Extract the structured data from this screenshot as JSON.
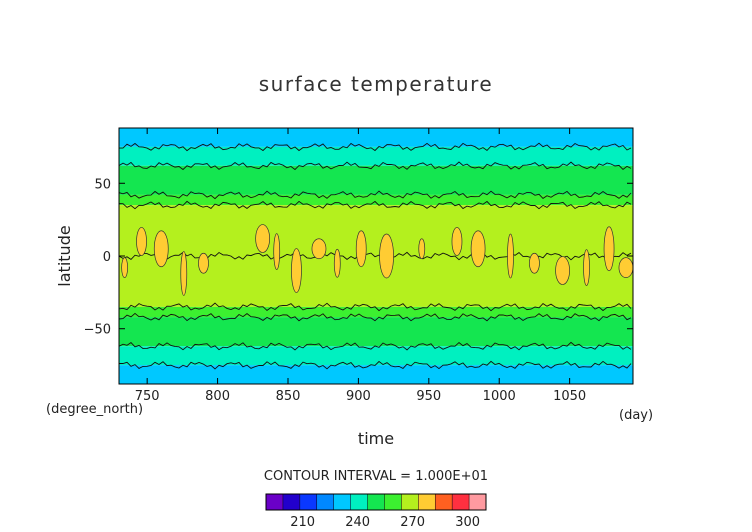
{
  "chart_data": {
    "type": "heatmap",
    "title": "surface temperature",
    "xlabel": "time",
    "ylabel": "latitude",
    "x_units": "(day)",
    "y_units": "(degree_north)",
    "xlim": [
      730,
      1095
    ],
    "ylim": [
      -88,
      88
    ],
    "x_ticks": [
      750,
      800,
      850,
      900,
      950,
      1000,
      1050
    ],
    "y_ticks": [
      -50,
      0,
      50
    ],
    "contour_interval_label": "CONTOUR INTERVAL = 1.000E+01",
    "colorbar": {
      "levels": [
        190,
        200,
        210,
        220,
        230,
        240,
        250,
        260,
        270,
        280,
        290,
        300,
        310
      ],
      "tick_values": [
        210,
        240,
        270,
        300
      ],
      "colors": [
        "#6a00c8",
        "#2200cc",
        "#0a38ff",
        "#0088ff",
        "#00c8ff",
        "#00f0c0",
        "#14e650",
        "#3cf030",
        "#b4f01e",
        "#ffcc33",
        "#ff6020",
        "#ff3040",
        "#ff9aa0"
      ]
    },
    "zonal_profile": [
      {
        "lat": 90,
        "value": 230
      },
      {
        "lat": 75,
        "value": 240
      },
      {
        "lat": 62,
        "value": 250
      },
      {
        "lat": 42,
        "value": 260
      },
      {
        "lat": 35,
        "value": 270
      },
      {
        "lat": 0,
        "value": 279
      },
      {
        "lat": -35,
        "value": 270
      },
      {
        "lat": -42,
        "value": 260
      },
      {
        "lat": -62,
        "value": 250
      },
      {
        "lat": -75,
        "value": 240
      },
      {
        "lat": -90,
        "value": 230
      }
    ],
    "warm_patches_above_280": [
      {
        "day": 734,
        "lat": -8
      },
      {
        "day": 746,
        "lat": 10
      },
      {
        "day": 760,
        "lat": 5
      },
      {
        "day": 776,
        "lat": -12
      },
      {
        "day": 790,
        "lat": -5
      },
      {
        "day": 832,
        "lat": 12
      },
      {
        "day": 842,
        "lat": 3
      },
      {
        "day": 856,
        "lat": -10
      },
      {
        "day": 872,
        "lat": 5
      },
      {
        "day": 885,
        "lat": -5
      },
      {
        "day": 902,
        "lat": 5
      },
      {
        "day": 920,
        "lat": 0
      },
      {
        "day": 945,
        "lat": 5
      },
      {
        "day": 970,
        "lat": 10
      },
      {
        "day": 985,
        "lat": 5
      },
      {
        "day": 1008,
        "lat": 0
      },
      {
        "day": 1025,
        "lat": -5
      },
      {
        "day": 1045,
        "lat": -10
      },
      {
        "day": 1062,
        "lat": -8
      },
      {
        "day": 1078,
        "lat": 5
      },
      {
        "day": 1090,
        "lat": -8
      }
    ]
  }
}
